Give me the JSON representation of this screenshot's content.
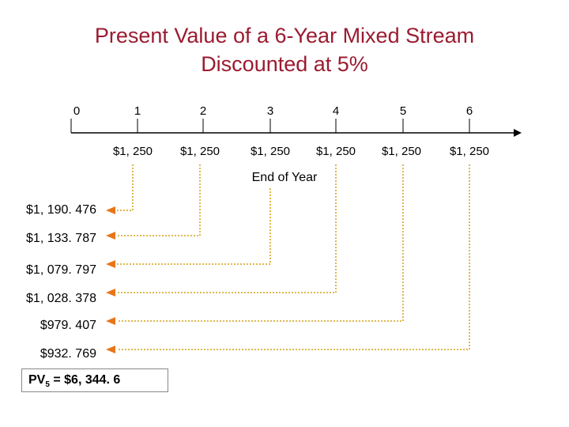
{
  "title": {
    "line1": "Present Value of a 6-Year Mixed Stream",
    "line2": "Discounted at 5%"
  },
  "timeline": {
    "years": [
      "0",
      "1",
      "2",
      "3",
      "4",
      "5",
      "6"
    ],
    "cash_flows": [
      "$1, 250",
      "$1, 250",
      "$1, 250",
      "$1, 250",
      "$1, 250",
      "$1, 250"
    ],
    "axis_title": "End of Year"
  },
  "present_values": [
    "$1, 190. 476",
    "$1, 133. 787",
    "$1, 079. 797",
    "$1, 028. 378",
    "$979. 407",
    "$932. 769"
  ],
  "total": {
    "label": "PV",
    "subscript": "5",
    "value": "= $6, 344. 6"
  },
  "colors": {
    "title": "#9b1b30",
    "arrow": "#e8751a",
    "dotted_line": "#d4a017"
  }
}
